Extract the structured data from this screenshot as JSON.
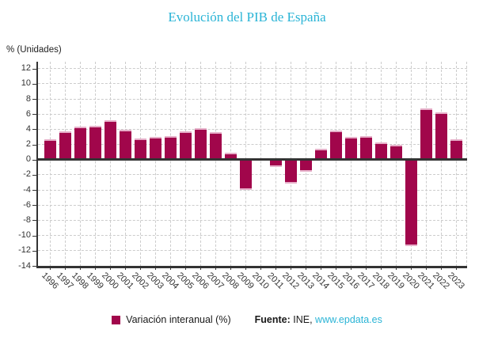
{
  "page": {
    "title": "Evolución del PIB de España",
    "unit_label": "% (Unidades)"
  },
  "legend": {
    "series_label": "Variación interanual (%)"
  },
  "footer": {
    "source_label": "Fuente:",
    "source_text": " INE, ",
    "link_text": "www.epdata.es"
  },
  "colors": {
    "bar": "#a1064b",
    "bar_edge_highlight": "#e6b0c9",
    "title": "#2ab4d6",
    "link": "#2ab4d6",
    "axis": "#333333",
    "grid": "#cccccc",
    "tick_text": "#333333"
  },
  "chart_data": {
    "type": "bar",
    "title": "Evolución del PIB de España",
    "ylabel": "% (Unidades)",
    "series_name": "Variación interanual (%)",
    "categories": [
      "1996",
      "1997",
      "1998",
      "1999",
      "2000",
      "2001",
      "2002",
      "2003",
      "2004",
      "2005",
      "2006",
      "2007",
      "2008",
      "2009",
      "2010",
      "2011",
      "2012",
      "2013",
      "2014",
      "2015",
      "2016",
      "2017",
      "2018",
      "2019",
      "2020",
      "2021",
      "2022",
      "2023"
    ],
    "values": [
      2.7,
      3.7,
      4.4,
      4.5,
      5.2,
      3.9,
      2.8,
      3.0,
      3.1,
      3.7,
      4.1,
      3.6,
      0.9,
      -3.8,
      0.2,
      -0.8,
      -3.0,
      -1.4,
      1.4,
      3.8,
      3.0,
      3.1,
      2.3,
      2.0,
      -11.2,
      6.7,
      6.2,
      2.7
    ],
    "yticks": [
      12,
      10,
      8,
      6,
      4,
      2,
      0,
      -2,
      -4,
      -6,
      -8,
      -10,
      -12,
      -14
    ],
    "ylim": [
      -14,
      13
    ],
    "grid": true,
    "legend_position": "bottom",
    "source": "INE, www.epdata.es"
  }
}
